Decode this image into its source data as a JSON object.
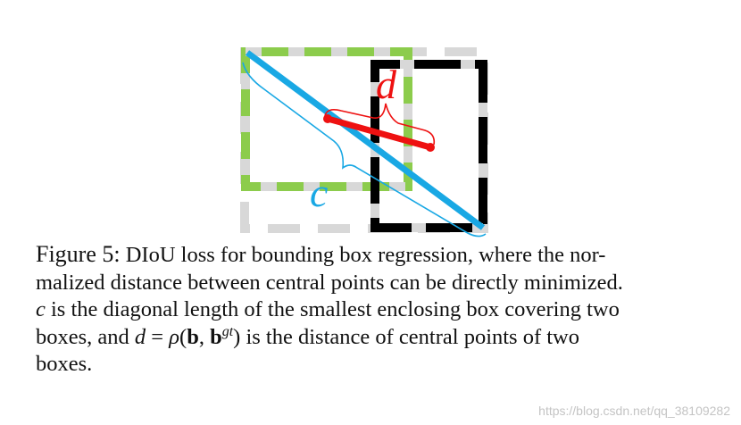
{
  "figure": {
    "label_d": "d",
    "label_c": "c",
    "colors": {
      "predicted_box": "#8ccc4c",
      "enclosing_box": "#d8d8d8",
      "ground_truth_box": "#000000",
      "center_distance": "#ee1111",
      "diagonal": "#19a8e4"
    }
  },
  "caption": {
    "label": "Figure 5:",
    "line1": "DIoU loss for bounding box regression, where the nor-",
    "line2": "malized distance between central points can be directly minimized.",
    "line3_var": "c",
    "line3_rest": " is the diagonal length of the smallest enclosing box covering two",
    "line4_prefix": "boxes, and ",
    "line4_d": "d",
    "line4_eq": " = ",
    "line4_rho": "ρ",
    "line4_open": "(",
    "line4_b": "b",
    "line4_comma": ", ",
    "line4_b2": "b",
    "line4_sup": "gt",
    "line4_close": ")",
    "line4_rest": " is the distance of central points of two",
    "line5": "boxes."
  },
  "watermark": "https://blog.csdn.net/qq_38109282"
}
